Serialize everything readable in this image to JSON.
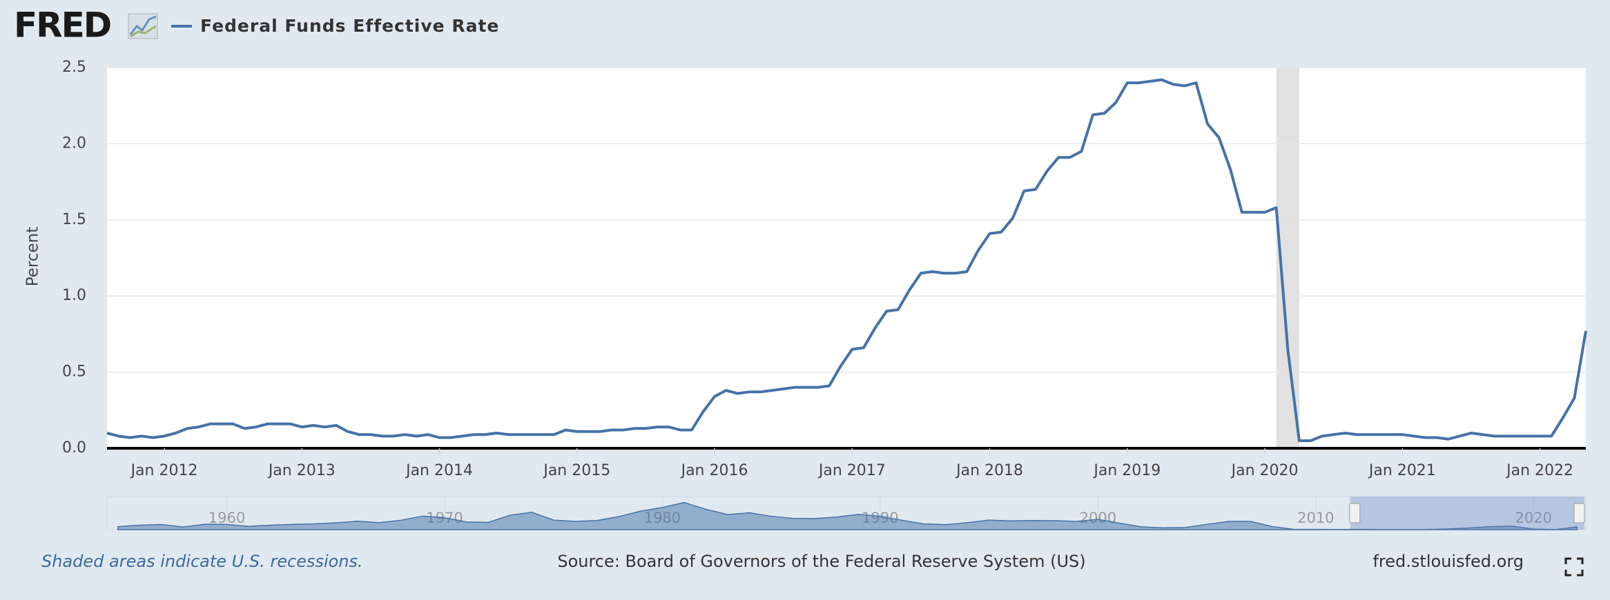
{
  "chart_data": {
    "type": "line",
    "logo": "FRED",
    "ylabel": "Percent",
    "note": "Shaded areas indicate U.S. recessions.",
    "source": "Source: Board of Governors of the Federal Reserve System (US)",
    "site": "fred.stlouisfed.org",
    "grid": true,
    "x": [
      "2011-08",
      "2011-09",
      "2011-10",
      "2011-11",
      "2011-12",
      "2012-01",
      "2012-02",
      "2012-03",
      "2012-04",
      "2012-05",
      "2012-06",
      "2012-07",
      "2012-08",
      "2012-09",
      "2012-10",
      "2012-11",
      "2012-12",
      "2013-01",
      "2013-02",
      "2013-03",
      "2013-04",
      "2013-05",
      "2013-06",
      "2013-07",
      "2013-08",
      "2013-09",
      "2013-10",
      "2013-11",
      "2013-12",
      "2014-01",
      "2014-02",
      "2014-03",
      "2014-04",
      "2014-05",
      "2014-06",
      "2014-07",
      "2014-08",
      "2014-09",
      "2014-10",
      "2014-11",
      "2014-12",
      "2015-01",
      "2015-02",
      "2015-03",
      "2015-04",
      "2015-05",
      "2015-06",
      "2015-07",
      "2015-08",
      "2015-09",
      "2015-10",
      "2015-11",
      "2015-12",
      "2016-01",
      "2016-02",
      "2016-03",
      "2016-04",
      "2016-05",
      "2016-06",
      "2016-07",
      "2016-08",
      "2016-09",
      "2016-10",
      "2016-11",
      "2016-12",
      "2017-01",
      "2017-02",
      "2017-03",
      "2017-04",
      "2017-05",
      "2017-06",
      "2017-07",
      "2017-08",
      "2017-09",
      "2017-10",
      "2017-11",
      "2017-12",
      "2018-01",
      "2018-02",
      "2018-03",
      "2018-04",
      "2018-05",
      "2018-06",
      "2018-07",
      "2018-08",
      "2018-09",
      "2018-10",
      "2018-11",
      "2018-12",
      "2019-01",
      "2019-02",
      "2019-03",
      "2019-04",
      "2019-05",
      "2019-06",
      "2019-07",
      "2019-08",
      "2019-09",
      "2019-10",
      "2019-11",
      "2019-12",
      "2020-01",
      "2020-02",
      "2020-03",
      "2020-04",
      "2020-05",
      "2020-06",
      "2020-07",
      "2020-08",
      "2020-09",
      "2020-10",
      "2020-11",
      "2020-12",
      "2021-01",
      "2021-02",
      "2021-03",
      "2021-04",
      "2021-05",
      "2021-06",
      "2021-07",
      "2021-08",
      "2021-09",
      "2021-10",
      "2021-11",
      "2021-12",
      "2022-01",
      "2022-02",
      "2022-03",
      "2022-04",
      "2022-05"
    ],
    "series": [
      {
        "name": "Federal Funds Effective Rate",
        "color": "#4572a7",
        "values": [
          0.1,
          0.08,
          0.07,
          0.08,
          0.07,
          0.08,
          0.1,
          0.13,
          0.14,
          0.16,
          0.16,
          0.16,
          0.13,
          0.14,
          0.16,
          0.16,
          0.16,
          0.14,
          0.15,
          0.14,
          0.15,
          0.11,
          0.09,
          0.09,
          0.08,
          0.08,
          0.09,
          0.08,
          0.09,
          0.07,
          0.07,
          0.08,
          0.09,
          0.09,
          0.1,
          0.09,
          0.09,
          0.09,
          0.09,
          0.09,
          0.12,
          0.11,
          0.11,
          0.11,
          0.12,
          0.12,
          0.13,
          0.13,
          0.14,
          0.14,
          0.12,
          0.12,
          0.24,
          0.34,
          0.38,
          0.36,
          0.37,
          0.37,
          0.38,
          0.39,
          0.4,
          0.4,
          0.4,
          0.41,
          0.54,
          0.65,
          0.66,
          0.79,
          0.9,
          0.91,
          1.04,
          1.15,
          1.16,
          1.15,
          1.15,
          1.16,
          1.3,
          1.41,
          1.42,
          1.51,
          1.69,
          1.7,
          1.82,
          1.91,
          1.91,
          1.95,
          2.19,
          2.2,
          2.27,
          2.4,
          2.4,
          2.41,
          2.42,
          2.39,
          2.38,
          2.4,
          2.13,
          2.04,
          1.83,
          1.55,
          1.55,
          1.55,
          1.58,
          0.65,
          0.05,
          0.05,
          0.08,
          0.09,
          0.1,
          0.09,
          0.09,
          0.09,
          0.09,
          0.09,
          0.08,
          0.07,
          0.07,
          0.06,
          0.08,
          0.1,
          0.09,
          0.08,
          0.08,
          0.08,
          0.08,
          0.08,
          0.08,
          0.2,
          0.33,
          0.77
        ]
      }
    ],
    "xlim": [
      "2011-08",
      "2022-05"
    ],
    "xticks": [
      {
        "value": "2012-01",
        "label": "Jan 2012"
      },
      {
        "value": "2013-01",
        "label": "Jan 2013"
      },
      {
        "value": "2014-01",
        "label": "Jan 2014"
      },
      {
        "value": "2015-01",
        "label": "Jan 2015"
      },
      {
        "value": "2016-01",
        "label": "Jan 2016"
      },
      {
        "value": "2017-01",
        "label": "Jan 2017"
      },
      {
        "value": "2018-01",
        "label": "Jan 2018"
      },
      {
        "value": "2019-01",
        "label": "Jan 2019"
      },
      {
        "value": "2020-01",
        "label": "Jan 2020"
      },
      {
        "value": "2021-01",
        "label": "Jan 2021"
      },
      {
        "value": "2022-01",
        "label": "Jan 2022"
      }
    ],
    "ylim": [
      0,
      2.5
    ],
    "yticks": [
      {
        "value": 0,
        "label": "0.0"
      },
      0.5,
      {
        "value": 1,
        "label": "1.0"
      },
      1.5,
      {
        "value": 2,
        "label": "2.0"
      },
      2.5
    ],
    "recessions": [
      {
        "start": "2020-02",
        "end": "2020-04"
      }
    ],
    "navigator": {
      "x": [
        1955,
        1956,
        1957,
        1958,
        1959,
        1960,
        1961,
        1962,
        1963,
        1964,
        1965,
        1966,
        1967,
        1968,
        1969,
        1970,
        1971,
        1972,
        1973,
        1974,
        1975,
        1976,
        1977,
        1978,
        1979,
        1980,
        1981,
        1982,
        1983,
        1984,
        1985,
        1986,
        1987,
        1988,
        1989,
        1990,
        1991,
        1992,
        1993,
        1994,
        1995,
        1996,
        1997,
        1998,
        1999,
        2000,
        2001,
        2002,
        2003,
        2004,
        2005,
        2006,
        2007,
        2008,
        2009,
        2010,
        2011,
        2012,
        2013,
        2014,
        2015,
        2016,
        2017,
        2018,
        2019,
        2020,
        2021,
        2022
      ],
      "values": [
        1.8,
        2.7,
        3.1,
        1.6,
        3.3,
        3.2,
        2.0,
        2.7,
        3.2,
        3.5,
        4.1,
        5.1,
        4.2,
        5.7,
        8.2,
        7.2,
        4.7,
        4.4,
        8.7,
        10.5,
        5.8,
        5.0,
        5.5,
        7.9,
        11.2,
        13.4,
        16.4,
        12.3,
        9.1,
        10.2,
        8.1,
        6.8,
        6.7,
        7.6,
        9.2,
        8.1,
        5.7,
        3.5,
        3.0,
        4.2,
        5.8,
        5.3,
        5.5,
        5.4,
        5.0,
        6.2,
        3.9,
        1.7,
        1.1,
        1.3,
        3.2,
        5.0,
        5.0,
        1.9,
        0.16,
        0.18,
        0.1,
        0.14,
        0.11,
        0.09,
        0.13,
        0.4,
        1.0,
        1.83,
        2.16,
        0.38,
        0.08,
        1.68
      ],
      "xlim": [
        1954.5,
        2022.4
      ],
      "ylim": [
        0,
        20
      ],
      "xticks": [
        1960,
        1970,
        1980,
        1990,
        2000,
        2010,
        2020
      ],
      "selection": [
        "2011-08",
        "2022-05"
      ]
    }
  }
}
